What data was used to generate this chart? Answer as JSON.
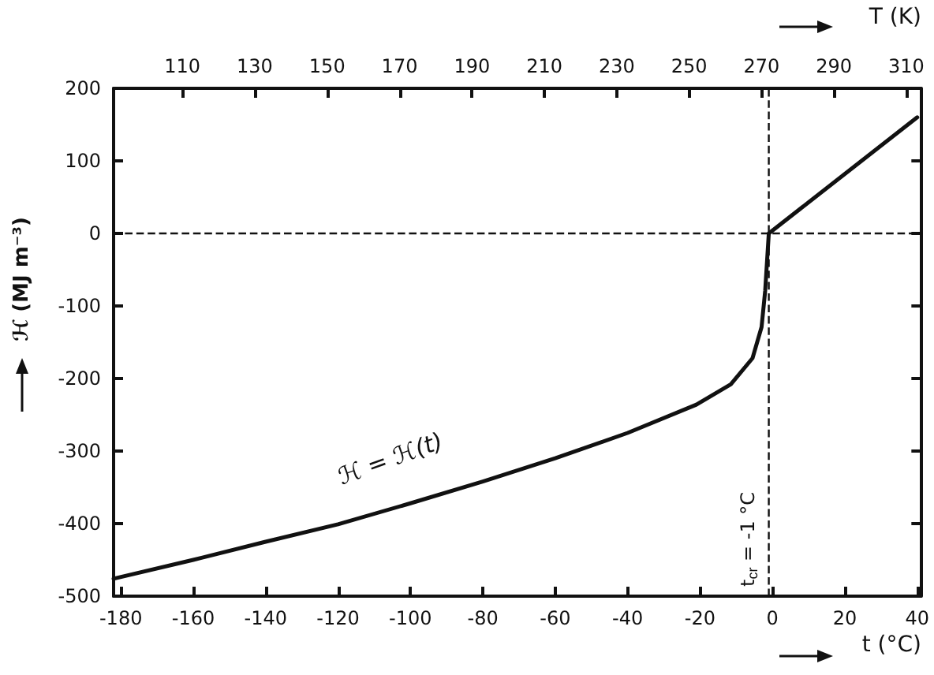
{
  "chart_data": {
    "type": "line",
    "xlabel": "t (°C)",
    "ylabel": "ℋ (MJ m⁻³)",
    "x2label": "T (K)",
    "xlim": [
      -182,
      41
    ],
    "xticks": [
      -180,
      -160,
      -140,
      -120,
      -100,
      -80,
      -60,
      -40,
      -20,
      0,
      20,
      40
    ],
    "x2lim": [
      91,
      314
    ],
    "x2ticks": [
      110,
      130,
      150,
      170,
      190,
      210,
      230,
      250,
      270,
      290,
      310
    ],
    "ylim": [
      -500,
      200
    ],
    "yticks": [
      -500,
      -400,
      -300,
      -200,
      -100,
      0,
      100,
      200
    ],
    "grid": false,
    "marker": "none",
    "line_style": "solid",
    "series": [
      {
        "color": "#111111",
        "x": [
          -182,
          -160,
          -140,
          -120,
          -100,
          -80,
          -60,
          -40,
          -21,
          -11.5,
          -5.5,
          -3,
          -2,
          -1,
          40
        ],
        "values": [
          -476,
          -450,
          -425,
          -401,
          -372,
          -342,
          -310,
          -275,
          -236,
          -208,
          -172,
          -129,
          -79,
          0,
          160
        ]
      }
    ],
    "ref_lines": [
      {
        "axis": "y",
        "value": 0,
        "line_style": "dashed",
        "color": "#111111"
      },
      {
        "axis": "x",
        "value": -1,
        "label": "t$_{cr}$ = -1 °C",
        "line_style": "dashed",
        "color": "#111111"
      }
    ],
    "annotations": [
      "ℋ = ℋ(t)"
    ]
  }
}
